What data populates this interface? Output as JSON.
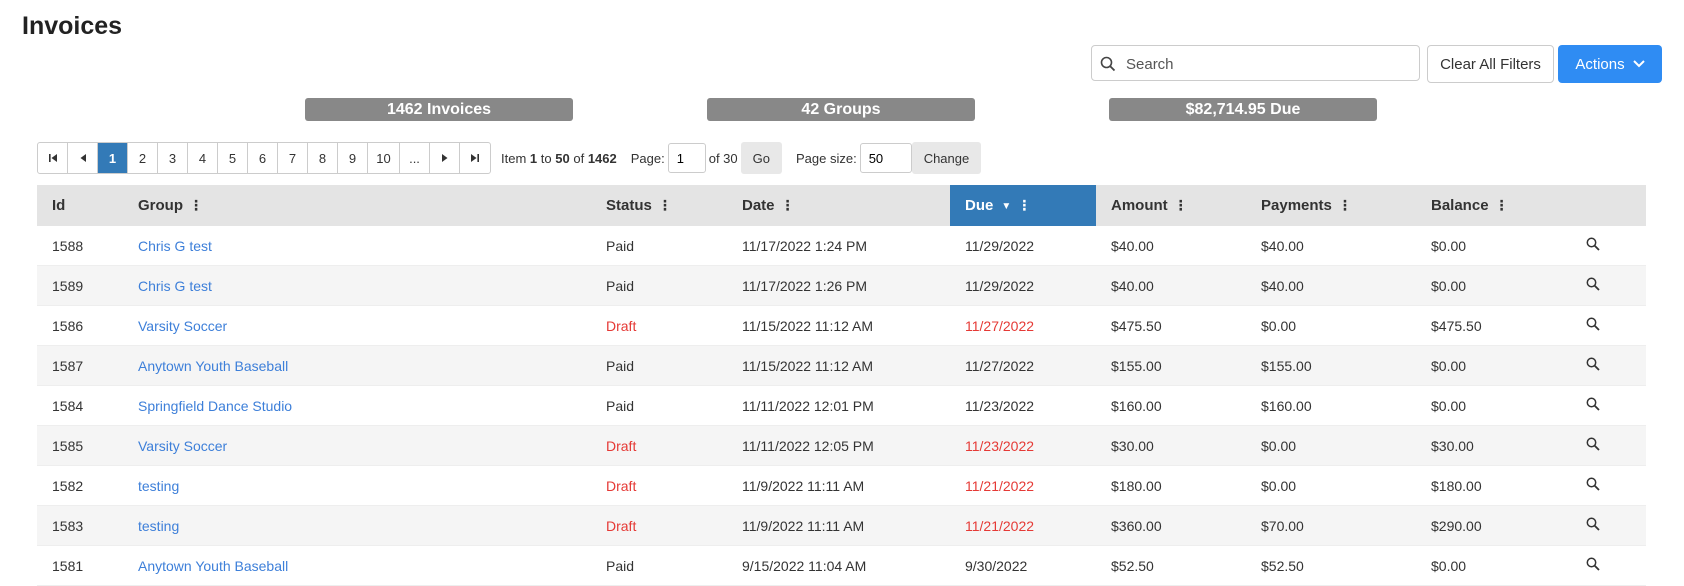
{
  "page": {
    "title": "Invoices"
  },
  "toolbar": {
    "search_placeholder": "Search",
    "clear_label": "Clear All Filters",
    "actions_label": "Actions"
  },
  "stats": {
    "invoices": "1462 Invoices",
    "groups": "42 Groups",
    "due": "$82,714.95 Due"
  },
  "pager": {
    "pages": [
      "1",
      "2",
      "3",
      "4",
      "5",
      "6",
      "7",
      "8",
      "9",
      "10",
      "..."
    ],
    "item_prefix": "Item",
    "item_from": "1",
    "item_to_word": "to",
    "item_to": "50",
    "item_of_word": "of",
    "item_total": "1462",
    "page_label": "Page:",
    "page_value": "1",
    "page_of": "of 30",
    "go_label": "Go",
    "size_label": "Page size:",
    "size_value": "50",
    "change_label": "Change"
  },
  "columns": [
    "Id",
    "Group",
    "Status",
    "Date",
    "Due",
    "Amount",
    "Payments",
    "Balance"
  ],
  "rows": [
    {
      "id": "1588",
      "group": "Chris G test",
      "status": "Paid",
      "date": "11/17/2022 1:24 PM",
      "due": "11/29/2022",
      "amount": "$40.00",
      "payments": "$40.00",
      "balance": "$0.00"
    },
    {
      "id": "1589",
      "group": "Chris G test",
      "status": "Paid",
      "date": "11/17/2022 1:26 PM",
      "due": "11/29/2022",
      "amount": "$40.00",
      "payments": "$40.00",
      "balance": "$0.00"
    },
    {
      "id": "1586",
      "group": "Varsity Soccer",
      "status": "Draft",
      "date": "11/15/2022 11:12 AM",
      "due": "11/27/2022",
      "amount": "$475.50",
      "payments": "$0.00",
      "balance": "$475.50"
    },
    {
      "id": "1587",
      "group": "Anytown Youth Baseball",
      "status": "Paid",
      "date": "11/15/2022 11:12 AM",
      "due": "11/27/2022",
      "amount": "$155.00",
      "payments": "$155.00",
      "balance": "$0.00"
    },
    {
      "id": "1584",
      "group": "Springfield Dance Studio",
      "status": "Paid",
      "date": "11/11/2022 12:01 PM",
      "due": "11/23/2022",
      "amount": "$160.00",
      "payments": "$160.00",
      "balance": "$0.00"
    },
    {
      "id": "1585",
      "group": "Varsity Soccer",
      "status": "Draft",
      "date": "11/11/2022 12:05 PM",
      "due": "11/23/2022",
      "amount": "$30.00",
      "payments": "$0.00",
      "balance": "$30.00"
    },
    {
      "id": "1582",
      "group": "testing",
      "status": "Draft",
      "date": "11/9/2022 11:11 AM",
      "due": "11/21/2022",
      "amount": "$180.00",
      "payments": "$0.00",
      "balance": "$180.00"
    },
    {
      "id": "1583",
      "group": "testing",
      "status": "Draft",
      "date": "11/9/2022 11:11 AM",
      "due": "11/21/2022",
      "amount": "$360.00",
      "payments": "$70.00",
      "balance": "$290.00"
    },
    {
      "id": "1581",
      "group": "Anytown Youth Baseball",
      "status": "Paid",
      "date": "9/15/2022 11:04 AM",
      "due": "9/30/2022",
      "amount": "$52.50",
      "payments": "$52.50",
      "balance": "$0.00"
    }
  ],
  "colors": {
    "accent": "#337ab7",
    "button": "#2f8cf3",
    "link": "#3d7fd9",
    "draft": "#e53935",
    "stat": "#888888"
  },
  "icons": {
    "row_action": "magnifier-icon",
    "search": "search-icon",
    "actions": "chevron-down-icon"
  }
}
